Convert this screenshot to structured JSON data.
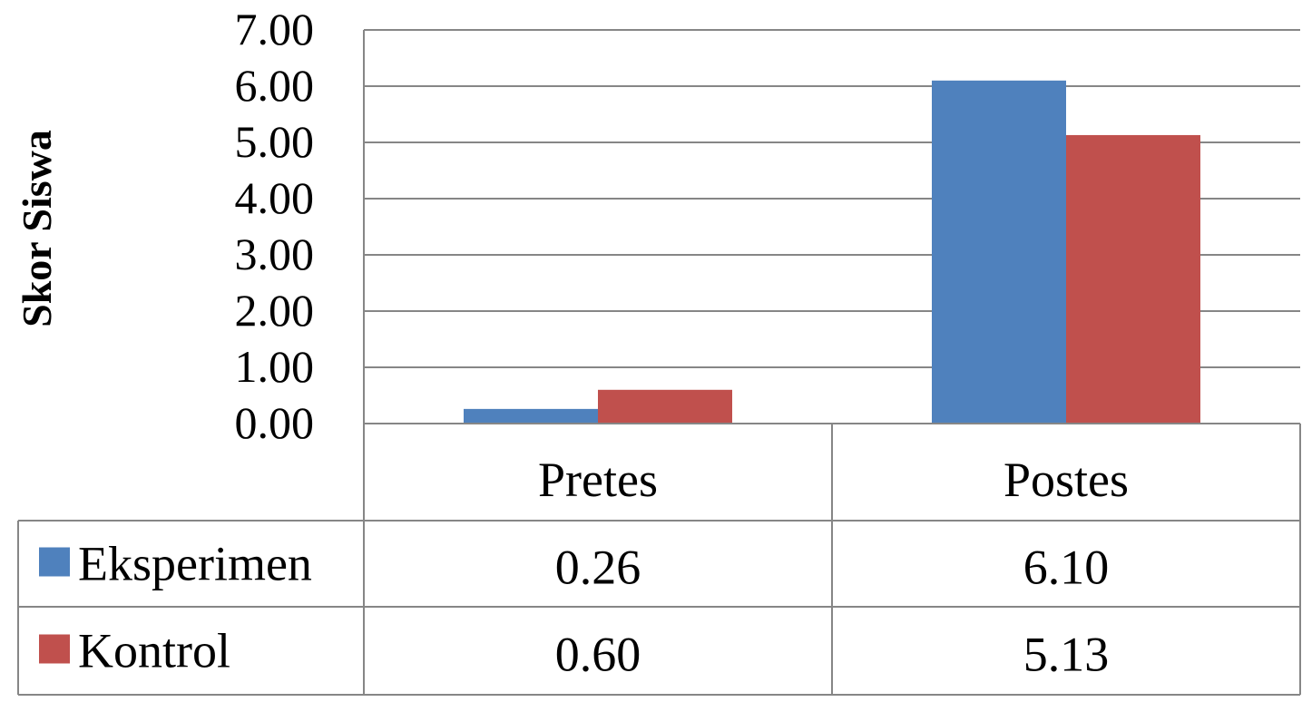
{
  "chart_data": {
    "type": "bar",
    "title": "",
    "ylabel": "Skor Siswa",
    "xlabel": "",
    "categories": [
      "Pretes",
      "Postes"
    ],
    "ylim": [
      0,
      7
    ],
    "y_ticks": [
      0,
      1,
      2,
      3,
      4,
      5,
      6,
      7
    ],
    "y_tick_labels": [
      "0.00",
      "1.00",
      "2.00",
      "3.00",
      "4.00",
      "5.00",
      "6.00",
      "7.00"
    ],
    "grid": "horizontal",
    "legend": "data-table",
    "series": [
      {
        "name": "Eksperimen",
        "color": "#4F81BD",
        "values": [
          0.26,
          6.1
        ],
        "value_labels": [
          "0.26",
          "6.10"
        ]
      },
      {
        "name": "Kontrol",
        "color": "#C0504D",
        "values": [
          0.6,
          5.13
        ],
        "value_labels": [
          "0.60",
          "5.13"
        ]
      }
    ]
  }
}
